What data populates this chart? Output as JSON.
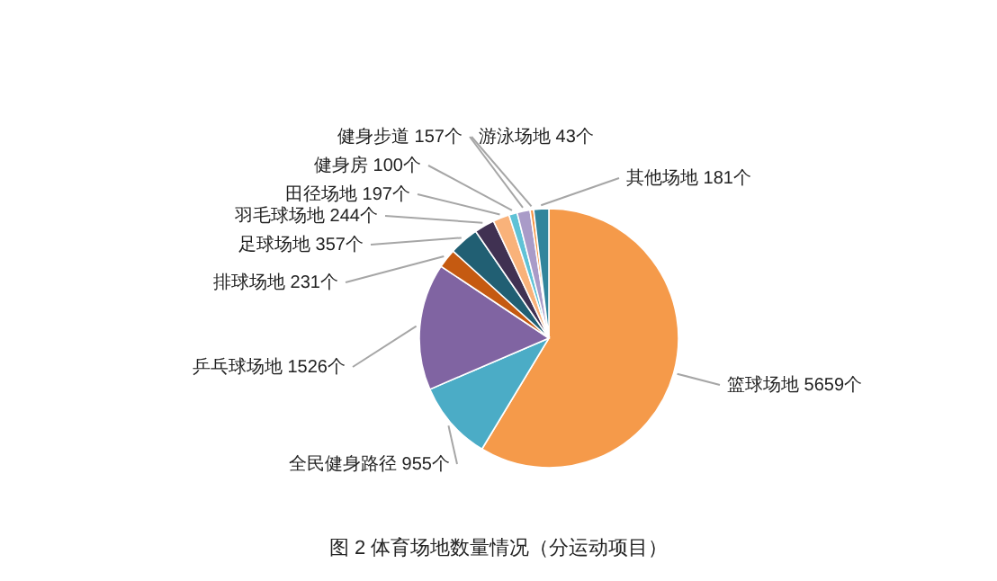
{
  "chart_data": {
    "type": "pie",
    "title": "图 2 体育场地数量情况（分运动项目）",
    "categories": [
      "篮球场地",
      "全民健身路径",
      "乒乓球场地",
      "排球场地",
      "足球场地",
      "羽毛球场地",
      "田径场地",
      "健身房",
      "健身步道",
      "游泳场地",
      "其他场地"
    ],
    "values": [
      5659,
      955,
      1526,
      231,
      357,
      244,
      197,
      100,
      157,
      43,
      181
    ],
    "value_labels": [
      "5659个",
      "955个",
      "1526个",
      "231个",
      "357个",
      "244个",
      "197个",
      "100个",
      "157个",
      "43个",
      "181个"
    ],
    "colors": [
      "#f59a4a",
      "#4bacc6",
      "#8064a2",
      "#c55a11",
      "#215f73",
      "#403152",
      "#f9b27a",
      "#5fc2d6",
      "#a99bc8",
      "#f79646",
      "#31859c"
    ]
  }
}
